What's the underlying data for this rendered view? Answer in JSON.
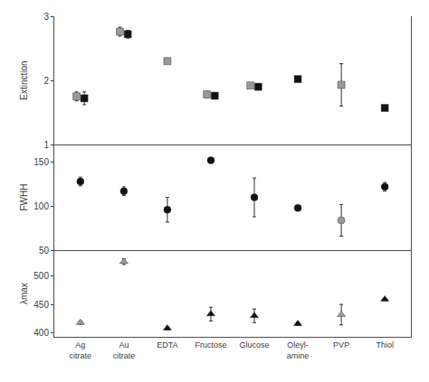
{
  "chart_data": [
    {
      "type": "scatter",
      "ylabel": "Extinction",
      "categories": [
        "Ag\ncitrate",
        "Au\ncitrate",
        "EDTA",
        "Fructose",
        "Glucose",
        "Oleyl-\namine",
        "PVP",
        "Thiol"
      ],
      "ylim": [
        1,
        3
      ],
      "yticks": [
        1,
        2,
        3
      ],
      "grid": false,
      "tick_labels": "y",
      "series": [
        {
          "color": "#999999",
          "marker": "square",
          "values": [
            1.75,
            2.76,
            2.3,
            1.78,
            1.92,
            null,
            1.93,
            null
          ],
          "errors": [
            0.07,
            0.07,
            0.0,
            0.05,
            0.04,
            null,
            0.33,
            null
          ]
        },
        {
          "color": "#111111",
          "marker": "square",
          "values": [
            1.72,
            2.72,
            null,
            1.76,
            1.9,
            2.02,
            null,
            1.57
          ],
          "errors": [
            0.1,
            0.06,
            null,
            0.05,
            0.05,
            0.0,
            null,
            0.0
          ]
        }
      ]
    },
    {
      "type": "scatter",
      "ylabel": "FWHH",
      "categories": [
        "Ag\ncitrate",
        "Au\ncitrate",
        "EDTA",
        "Fructose",
        "Glucose",
        "Oleyl-\namine",
        "PVP",
        "Thiol"
      ],
      "ylim": [
        50,
        170
      ],
      "yticks": [
        50,
        100,
        150
      ],
      "grid": false,
      "tick_labels": "y",
      "series": [
        {
          "color": "#999999",
          "marker": "circle",
          "values": [
            null,
            null,
            null,
            null,
            null,
            null,
            84,
            null
          ],
          "errors": [
            null,
            null,
            null,
            null,
            null,
            null,
            18,
            null
          ]
        },
        {
          "color": "#111111",
          "marker": "circle",
          "values": [
            128,
            117,
            96,
            152,
            110,
            98,
            null,
            122
          ],
          "errors": [
            5,
            5,
            14,
            3,
            22,
            3,
            null,
            5
          ]
        }
      ]
    },
    {
      "type": "scatter",
      "ylabel": "λmax",
      "categories": [
        "Ag\ncitrate",
        "Au\ncitrate",
        "EDTA",
        "Fructose",
        "Glucose",
        "Oleyl-\namine",
        "PVP",
        "Thiol"
      ],
      "ylim": [
        393,
        545
      ],
      "yticks": [
        400,
        450,
        500
      ],
      "grid": false,
      "series": [
        {
          "color": "#999999",
          "marker": "triangle-up",
          "values": [
            418,
            null,
            null,
            null,
            null,
            null,
            432,
            null
          ],
          "errors": [
            3,
            null,
            null,
            null,
            null,
            null,
            18,
            null
          ]
        },
        {
          "color": "#111111",
          "marker": "triangle-up",
          "values": [
            null,
            null,
            408,
            433,
            430,
            416,
            null,
            459
          ],
          "errors": [
            null,
            null,
            3,
            12,
            12,
            3,
            null,
            0
          ]
        },
        {
          "color": "#999999",
          "marker": "triangle-up",
          "values": [
            null,
            525,
            null,
            null,
            null,
            null,
            null,
            null
          ],
          "errors": [
            null,
            5,
            null,
            null,
            null,
            null,
            null,
            null
          ]
        }
      ]
    }
  ]
}
